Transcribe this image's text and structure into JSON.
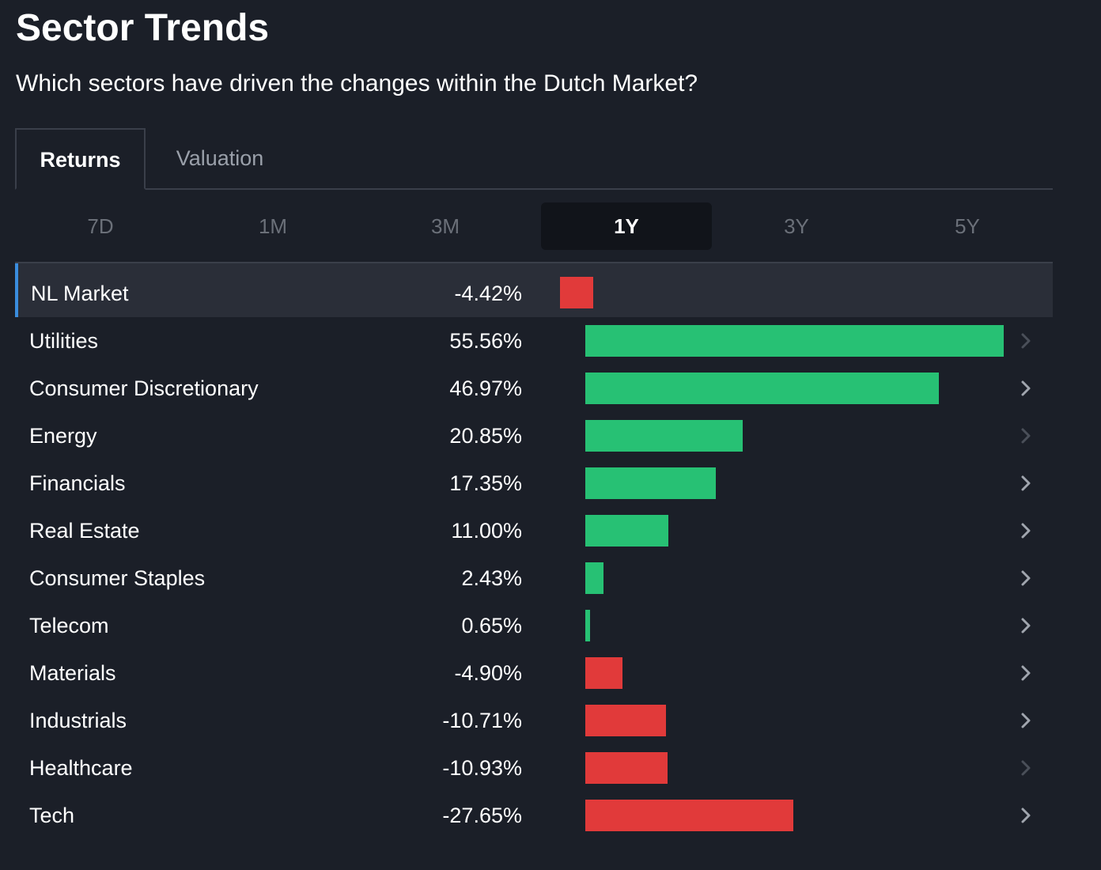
{
  "header": {
    "title": "Sector Trends",
    "subtitle": "Which sectors have driven the changes within the Dutch Market?"
  },
  "tabs": [
    {
      "label": "Returns",
      "active": true
    },
    {
      "label": "Valuation",
      "active": false
    }
  ],
  "periods": [
    {
      "label": "7D",
      "active": false
    },
    {
      "label": "1M",
      "active": false
    },
    {
      "label": "3M",
      "active": false
    },
    {
      "label": "1Y",
      "active": true
    },
    {
      "label": "3Y",
      "active": false
    },
    {
      "label": "5Y",
      "active": false
    }
  ],
  "colors": {
    "positive": "#27c174",
    "negative": "#e13a3a",
    "accent": "#3a8dde"
  },
  "market": {
    "name": "NL Market",
    "value_label": "-4.42%",
    "value": -4.42
  },
  "sectors": [
    {
      "name": "Utilities",
      "value_label": "55.56%",
      "value": 55.56,
      "chevron_dim": true
    },
    {
      "name": "Consumer Discretionary",
      "value_label": "46.97%",
      "value": 46.97,
      "chevron_dim": false
    },
    {
      "name": "Energy",
      "value_label": "20.85%",
      "value": 20.85,
      "chevron_dim": true
    },
    {
      "name": "Financials",
      "value_label": "17.35%",
      "value": 17.35,
      "chevron_dim": false
    },
    {
      "name": "Real Estate",
      "value_label": "11.00%",
      "value": 11.0,
      "chevron_dim": false
    },
    {
      "name": "Consumer Staples",
      "value_label": "2.43%",
      "value": 2.43,
      "chevron_dim": false
    },
    {
      "name": "Telecom",
      "value_label": "0.65%",
      "value": 0.65,
      "chevron_dim": false
    },
    {
      "name": "Materials",
      "value_label": "-4.90%",
      "value": -4.9,
      "chevron_dim": false
    },
    {
      "name": "Industrials",
      "value_label": "-10.71%",
      "value": -10.71,
      "chevron_dim": false
    },
    {
      "name": "Healthcare",
      "value_label": "-10.93%",
      "value": -10.93,
      "chevron_dim": true
    },
    {
      "name": "Tech",
      "value_label": "-27.65%",
      "value": -27.65,
      "chevron_dim": false
    }
  ]
}
